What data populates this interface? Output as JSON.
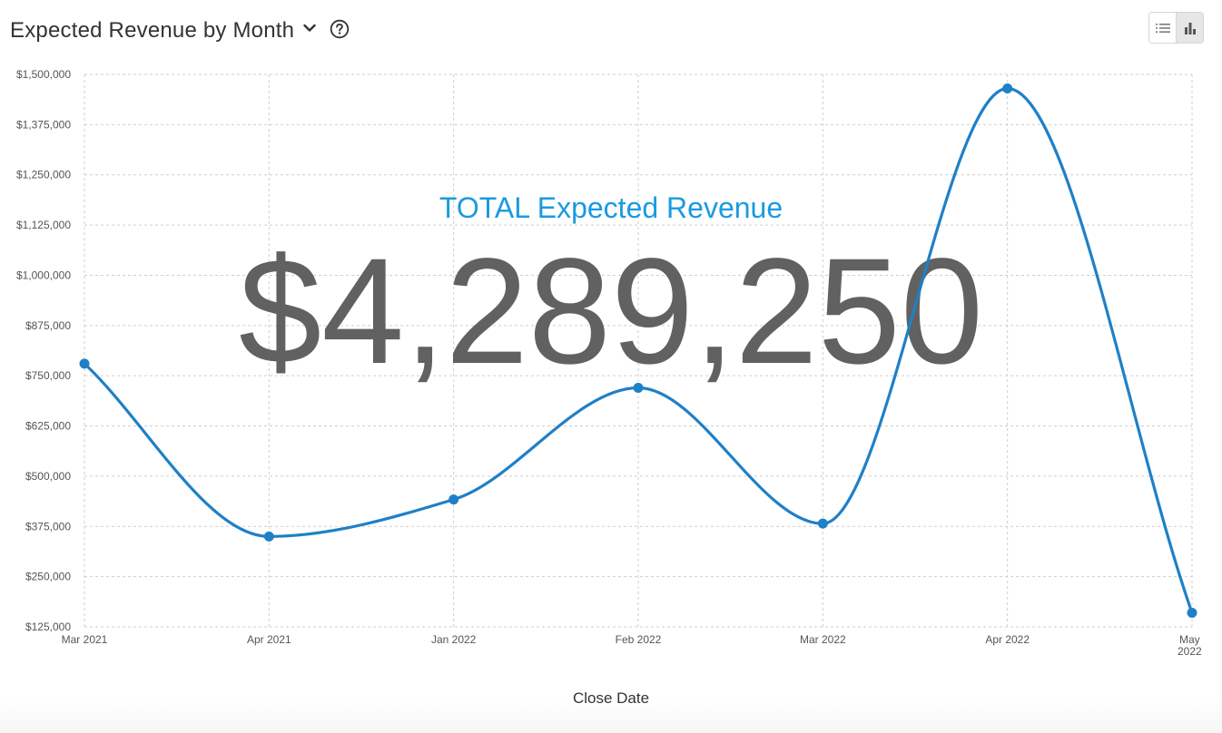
{
  "header": {
    "title": "Expected Revenue by Month",
    "dropdown_icon": "chevron-down-icon",
    "help_icon": "question-circle-icon"
  },
  "view_toggle": {
    "list_icon": "list-icon",
    "chart_icon": "bar-chart-icon",
    "active": "chart"
  },
  "overlay": {
    "label": "TOTAL Expected Revenue",
    "value": "$4,289,250",
    "label_color": "#1a9ae0",
    "value_color": "#616161"
  },
  "chart_data": {
    "type": "line",
    "categories": [
      "Mar 2021",
      "Apr 2021",
      "Jan 2022",
      "Feb 2022",
      "Mar 2022",
      "Apr 2022",
      "May 2022"
    ],
    "series": [
      {
        "values": [
          780000,
          350000,
          442000,
          720000,
          382000,
          1465000,
          160000
        ],
        "color": "#1f80c6"
      }
    ],
    "xlabel": "Close Date",
    "ylabel": "",
    "ylim": [
      125000,
      1500000
    ],
    "yticks": [
      125000,
      250000,
      375000,
      500000,
      625000,
      750000,
      875000,
      1000000,
      1125000,
      1250000,
      1375000,
      1500000
    ],
    "ytick_labels": [
      "$125,000",
      "$250,000",
      "$375,000",
      "$500,000",
      "$625,000",
      "$750,000",
      "$875,000",
      "$1,000,000",
      "$1,125,000",
      "$1,250,000",
      "$1,375,000",
      "$1,500,000"
    ],
    "grid": true,
    "smooth": true
  }
}
